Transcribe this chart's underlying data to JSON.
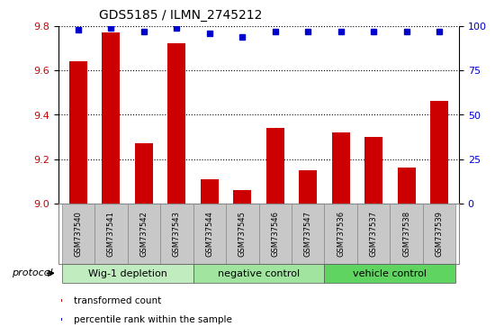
{
  "title": "GDS5185 / ILMN_2745212",
  "samples": [
    "GSM737540",
    "GSM737541",
    "GSM737542",
    "GSM737543",
    "GSM737544",
    "GSM737545",
    "GSM737546",
    "GSM737547",
    "GSM737536",
    "GSM737537",
    "GSM737538",
    "GSM737539"
  ],
  "bar_values": [
    9.64,
    9.77,
    9.27,
    9.72,
    9.11,
    9.06,
    9.34,
    9.15,
    9.32,
    9.3,
    9.16,
    9.46
  ],
  "percentile_values": [
    98,
    99,
    97,
    99,
    96,
    94,
    97,
    97,
    97,
    97,
    97,
    97
  ],
  "bar_color": "#cc0000",
  "dot_color": "#0000cc",
  "ylim_left": [
    9.0,
    9.8
  ],
  "ylim_right": [
    0,
    100
  ],
  "yticks_left": [
    9.0,
    9.2,
    9.4,
    9.6,
    9.8
  ],
  "yticks_right": [
    0,
    25,
    50,
    75,
    100
  ],
  "group_defs": [
    {
      "start": 0,
      "end": 3,
      "label": "Wig-1 depletion",
      "color": "#c0ecc0"
    },
    {
      "start": 4,
      "end": 7,
      "label": "negative control",
      "color": "#a0e4a0"
    },
    {
      "start": 8,
      "end": 11,
      "label": "vehicle control",
      "color": "#60d460"
    }
  ],
  "sample_box_color": "#c8c8c8",
  "legend_items": [
    {
      "label": "transformed count",
      "color": "#cc0000"
    },
    {
      "label": "percentile rank within the sample",
      "color": "#0000cc"
    }
  ],
  "protocol_label": "protocol",
  "background_color": "#ffffff",
  "tick_label_color_left": "#cc0000",
  "tick_label_color_right": "#0000cc",
  "bar_width": 0.55,
  "title_fontsize": 10
}
